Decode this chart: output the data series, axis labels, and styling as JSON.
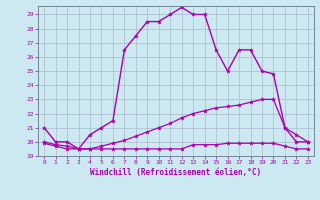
{
  "xlabel": "Windchill (Refroidissement éolien,°C)",
  "background_color": "#cce8f0",
  "grid_color": "#aabbcc",
  "line_color": "#aa00aa",
  "xlim": [
    -0.5,
    23.5
  ],
  "ylim": [
    19,
    29.6
  ],
  "yticks": [
    19,
    20,
    21,
    22,
    23,
    24,
    25,
    26,
    27,
    28,
    29
  ],
  "xticks": [
    0,
    1,
    2,
    3,
    4,
    5,
    6,
    7,
    8,
    9,
    10,
    11,
    12,
    13,
    14,
    15,
    16,
    17,
    18,
    19,
    20,
    21,
    22,
    23
  ],
  "series": [
    {
      "x": [
        0,
        1,
        2,
        3,
        4,
        5,
        6,
        7,
        8,
        9,
        10,
        11,
        12,
        13,
        14,
        15,
        16,
        17,
        18,
        19,
        20,
        21,
        22,
        23
      ],
      "y": [
        21,
        20,
        20,
        19.5,
        20.5,
        21,
        21.5,
        26.5,
        27.5,
        28.5,
        28.5,
        29,
        29.5,
        29,
        29,
        26.5,
        25,
        26.5,
        26.5,
        25,
        24.8,
        21,
        20,
        20
      ],
      "linewidth": 1.0
    },
    {
      "x": [
        0,
        1,
        2,
        3,
        4,
        5,
        6,
        7,
        8,
        9,
        10,
        11,
        12,
        13,
        14,
        15,
        16,
        17,
        18,
        19,
        20,
        21,
        22,
        23
      ],
      "y": [
        20.0,
        19.8,
        19.7,
        19.5,
        19.5,
        19.7,
        19.9,
        20.1,
        20.4,
        20.7,
        21.0,
        21.3,
        21.7,
        22.0,
        22.2,
        22.4,
        22.5,
        22.6,
        22.8,
        23.0,
        23.0,
        21.0,
        20.5,
        20.0
      ],
      "linewidth": 0.9
    },
    {
      "x": [
        0,
        1,
        2,
        3,
        4,
        5,
        6,
        7,
        8,
        9,
        10,
        11,
        12,
        13,
        14,
        15,
        16,
        17,
        18,
        19,
        20,
        21,
        22,
        23
      ],
      "y": [
        19.9,
        19.7,
        19.5,
        19.5,
        19.5,
        19.5,
        19.5,
        19.5,
        19.5,
        19.5,
        19.5,
        19.5,
        19.5,
        19.8,
        19.8,
        19.8,
        19.9,
        19.9,
        19.9,
        19.9,
        19.9,
        19.7,
        19.5,
        19.5
      ],
      "linewidth": 0.9
    }
  ]
}
